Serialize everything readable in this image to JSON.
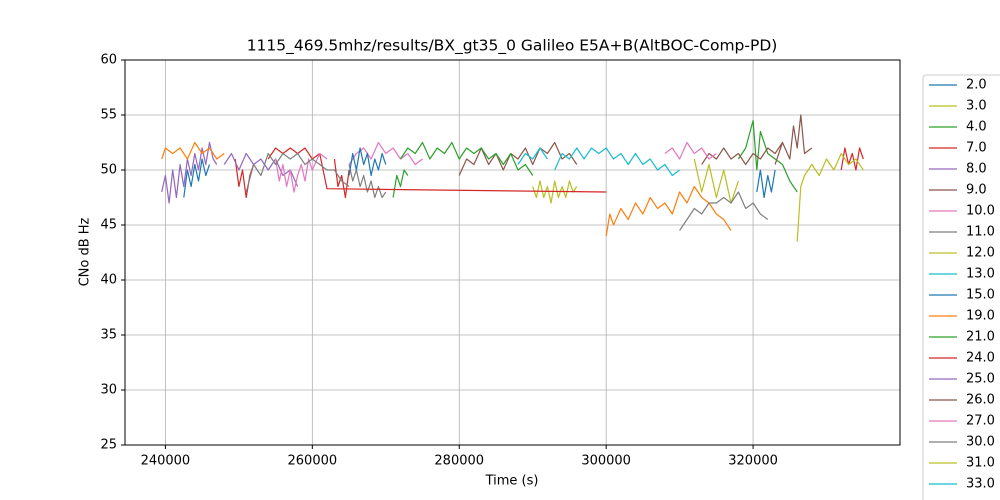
{
  "chart_data": {
    "type": "line",
    "title": "1115_469.5mhz/results/BX_gt35_0 Galileo E5A+B(AltBOC-Comp-PD)",
    "x_label": "Time (s)",
    "y_label": "CNo dB Hz",
    "xlim": [
      234500,
      340000
    ],
    "ylim": [
      25,
      60
    ],
    "xticks": [
      240000,
      260000,
      280000,
      300000,
      320000
    ],
    "yticks": [
      25,
      30,
      35,
      40,
      45,
      50,
      55,
      60
    ],
    "grid": true,
    "legend_position": "right",
    "series": [
      {
        "name": "2.0",
        "color": "#1f77b4",
        "x": [
          242500,
          243000,
          243500,
          244000,
          244500,
          245000,
          245500,
          246000
        ],
        "values": [
          47.5,
          50,
          48.5,
          50.5,
          49,
          51,
          49.5,
          50.5
        ]
      },
      {
        "name": "3.0",
        "color": "#bcbd22",
        "x": [
          290000,
          290500,
          291000,
          291500,
          292000,
          292500,
          293000,
          293500,
          294000,
          294500,
          295000,
          295500,
          296000
        ],
        "values": [
          48.5,
          47.5,
          49,
          47.5,
          48.5,
          47,
          49,
          47.5,
          48.5,
          47.5,
          49,
          48,
          48.5
        ]
      },
      {
        "name": "4.0",
        "color": "#2ca02c",
        "x": [
          271000,
          271500,
          272000,
          272500,
          273000,
          null,
          318000,
          319000,
          320000,
          320500,
          321000,
          322000,
          323000,
          324000,
          325000,
          326000
        ],
        "values": [
          47.5,
          49.5,
          48.5,
          50,
          49.5,
          null,
          51,
          52,
          54.5,
          50,
          53.5,
          51.5,
          51,
          50.5,
          49,
          48
        ]
      },
      {
        "name": "7.0",
        "color": "#d62728",
        "x": [
          249500,
          250000,
          250500,
          251000,
          251500,
          252000,
          null,
          263000,
          263500,
          264000,
          264500,
          265000,
          null,
          332000,
          332500,
          333000,
          333500,
          334000,
          334500,
          335000
        ],
        "values": [
          51,
          48.5,
          50,
          47.5,
          49.5,
          50.5,
          null,
          51,
          48.5,
          49.5,
          47.5,
          50,
          null,
          50,
          52,
          50.5,
          51.5,
          50,
          52,
          51
        ]
      },
      {
        "name": "8.0",
        "color": "#9467bd",
        "x": [
          239500,
          240000,
          240500,
          241000,
          241500,
          242000,
          242500,
          243000,
          243500,
          244000,
          244500,
          245000,
          245500,
          246000,
          246500,
          247000
        ],
        "values": [
          48,
          49.5,
          47,
          50,
          47.5,
          50.5,
          48.5,
          51,
          49.5,
          51.5,
          50,
          52,
          50.5,
          52.5,
          51,
          50.5
        ]
      },
      {
        "name": "9.0",
        "color": "#8c564b",
        "x": [
          280000,
          281000,
          282000,
          283000,
          284000,
          285000,
          286000,
          287000,
          288000,
          289000,
          290000,
          291000,
          292000,
          293000,
          294000,
          295000,
          296000,
          null,
          323000,
          324000,
          325000,
          325500,
          326000,
          326500,
          327000,
          328000
        ],
        "values": [
          49.5,
          51,
          50.5,
          52,
          50.5,
          51.5,
          50,
          51.5,
          51,
          52,
          50.5,
          52,
          51.5,
          52.5,
          51,
          51.5,
          50.5,
          null,
          50.5,
          52.5,
          51,
          54,
          52,
          55,
          51.5,
          52
        ]
      },
      {
        "name": "10.0",
        "color": "#e377c2",
        "x": [
          265000,
          266000,
          267000,
          268000,
          269000,
          270000,
          271000,
          272000,
          273000,
          274000,
          275000
        ],
        "values": [
          50.5,
          51.5,
          52,
          51,
          52.5,
          51.5,
          52,
          51,
          51.5,
          50.5,
          51
        ]
      },
      {
        "name": "11.0",
        "color": "#7f7f7f",
        "x": [
          265000,
          265500,
          266000,
          266500,
          267000,
          267500,
          268000,
          268500,
          269000,
          269500,
          270000
        ],
        "values": [
          50.5,
          49,
          50,
          48.5,
          49.5,
          48,
          49,
          47.5,
          48.5,
          47.5,
          48
        ]
      },
      {
        "name": "12.0",
        "color": "#bcbd22",
        "x": [
          312000,
          313000,
          314000,
          315000,
          316000,
          317000,
          318000
        ],
        "values": [
          51,
          48,
          50.5,
          47.5,
          50,
          47,
          49
        ]
      },
      {
        "name": "13.0",
        "color": "#17becf",
        "x": [
          293000,
          294000,
          295000,
          296000,
          297000,
          298000,
          299000,
          300000,
          301000,
          302000,
          303000,
          304000,
          305000,
          306000,
          307000,
          308000,
          309000,
          310000
        ],
        "values": [
          50,
          51.5,
          51,
          52,
          51,
          52,
          51.5,
          52,
          51,
          51.5,
          50.5,
          51.5,
          50.5,
          51,
          50,
          50.5,
          49.5,
          50
        ]
      },
      {
        "name": "15.0",
        "color": "#1f77b4",
        "x": [
          265000,
          265500,
          266000,
          266500,
          267000,
          267500,
          268000,
          268500,
          269000,
          269500,
          270000,
          null,
          320500,
          321000,
          321500,
          322000,
          322500,
          323000
        ],
        "values": [
          49.5,
          51.5,
          50,
          52,
          50.5,
          51.5,
          49.5,
          51,
          50,
          51.5,
          50.5,
          null,
          48,
          50,
          47.5,
          49.5,
          48,
          50
        ]
      },
      {
        "name": "19.0",
        "color": "#ff7f0e",
        "x": [
          239500,
          240000,
          241000,
          242000,
          243000,
          244000,
          245000,
          246000,
          247000,
          248000,
          null,
          300000,
          300500,
          301000,
          302000,
          303000,
          304000,
          305000,
          306000,
          307000,
          308000,
          309000,
          310000,
          311000,
          312000,
          313000,
          314000,
          315000,
          316000,
          317000
        ],
        "values": [
          51,
          52,
          51.5,
          52,
          51,
          52.5,
          51.5,
          52,
          51,
          51.5,
          null,
          44,
          46,
          45,
          46.5,
          45.5,
          47,
          46,
          47.5,
          46.5,
          47,
          46,
          48,
          47,
          48.5,
          47.5,
          47,
          46,
          45.5,
          44.5
        ]
      },
      {
        "name": "21.0",
        "color": "#2ca02c",
        "x": [
          272000,
          273000,
          274000,
          275000,
          276000,
          277000,
          278000,
          279000,
          280000,
          281000,
          282000,
          283000,
          284000,
          285000,
          286000,
          287000,
          288000,
          289000,
          290000
        ],
        "values": [
          51,
          52,
          51.5,
          52.5,
          51,
          52,
          51.5,
          52.5,
          51,
          52,
          51.5,
          52,
          51,
          51.5,
          50.5,
          51.5,
          50,
          50.5,
          49.5
        ]
      },
      {
        "name": "24.0",
        "color": "#d62728",
        "x": [
          254000,
          255000,
          256000,
          257000,
          258000,
          259000,
          260000,
          261000,
          262000,
          300000
        ],
        "values": [
          51,
          52,
          51.5,
          52,
          51.5,
          52,
          51,
          51.5,
          48.3,
          48
        ]
      },
      {
        "name": "25.0",
        "color": "#9467bd",
        "x": [
          248000,
          249000,
          250000,
          251000,
          252000,
          253000,
          254000,
          255000,
          256000,
          257000,
          258000
        ],
        "values": [
          50.5,
          51.5,
          50,
          51.5,
          50.5,
          51,
          50,
          51,
          49.5,
          50,
          48.5
        ]
      },
      {
        "name": "26.0",
        "color": "#8c564b",
        "x": [
          313000,
          314000,
          315000,
          316000,
          317000,
          318000,
          319000,
          320000,
          321000,
          322000,
          323000,
          324000
        ],
        "values": [
          50.5,
          51.5,
          51,
          52,
          51,
          51.5,
          50.5,
          51.5,
          51,
          52,
          51.5,
          52.5
        ]
      },
      {
        "name": "27.0",
        "color": "#e377c2",
        "x": [
          255000,
          255500,
          256000,
          256500,
          257000,
          257500,
          258000,
          258500,
          259000,
          259500,
          260000,
          261000,
          262000,
          null,
          308000,
          309000,
          310000,
          311000,
          312000,
          313000,
          314000,
          315000
        ],
        "values": [
          51,
          49,
          50.5,
          48.5,
          50,
          48,
          49.5,
          50.5,
          49,
          51,
          50,
          51.5,
          51,
          null,
          51.5,
          52,
          51,
          52.5,
          51.5,
          52,
          51,
          51.5
        ]
      },
      {
        "name": "30.0",
        "color": "#7f7f7f",
        "x": [
          251000,
          252000,
          253000,
          254000,
          255000,
          256000,
          257000,
          258000,
          259000,
          260000,
          261000,
          262000,
          263000,
          264000,
          265000,
          null,
          310000,
          311000,
          312000,
          313000,
          314000,
          315000,
          316000,
          317000,
          318000,
          319000,
          320000,
          321000,
          322000
        ],
        "values": [
          48,
          50.5,
          49.5,
          51.5,
          50.5,
          51.5,
          51,
          51.5,
          50.5,
          51,
          50.5,
          50,
          50,
          49,
          48.5,
          null,
          44.5,
          45.5,
          46.5,
          46,
          47,
          47,
          47.5,
          47,
          48,
          46.5,
          47,
          46,
          45.5
        ]
      },
      {
        "name": "31.0",
        "color": "#bcbd22",
        "x": [
          326000,
          326500,
          327000,
          328000,
          329000,
          330000,
          331000,
          332000,
          333000,
          334000,
          335000
        ],
        "values": [
          43.5,
          48.5,
          49.5,
          50.5,
          49.5,
          51,
          50,
          51.5,
          50.5,
          51,
          50
        ]
      },
      {
        "name": "33.0",
        "color": "#17becf",
        "x": [
          288000,
          289000,
          290000,
          291000,
          292000
        ],
        "values": [
          50.5,
          51.5,
          51,
          52,
          51
        ]
      }
    ]
  }
}
